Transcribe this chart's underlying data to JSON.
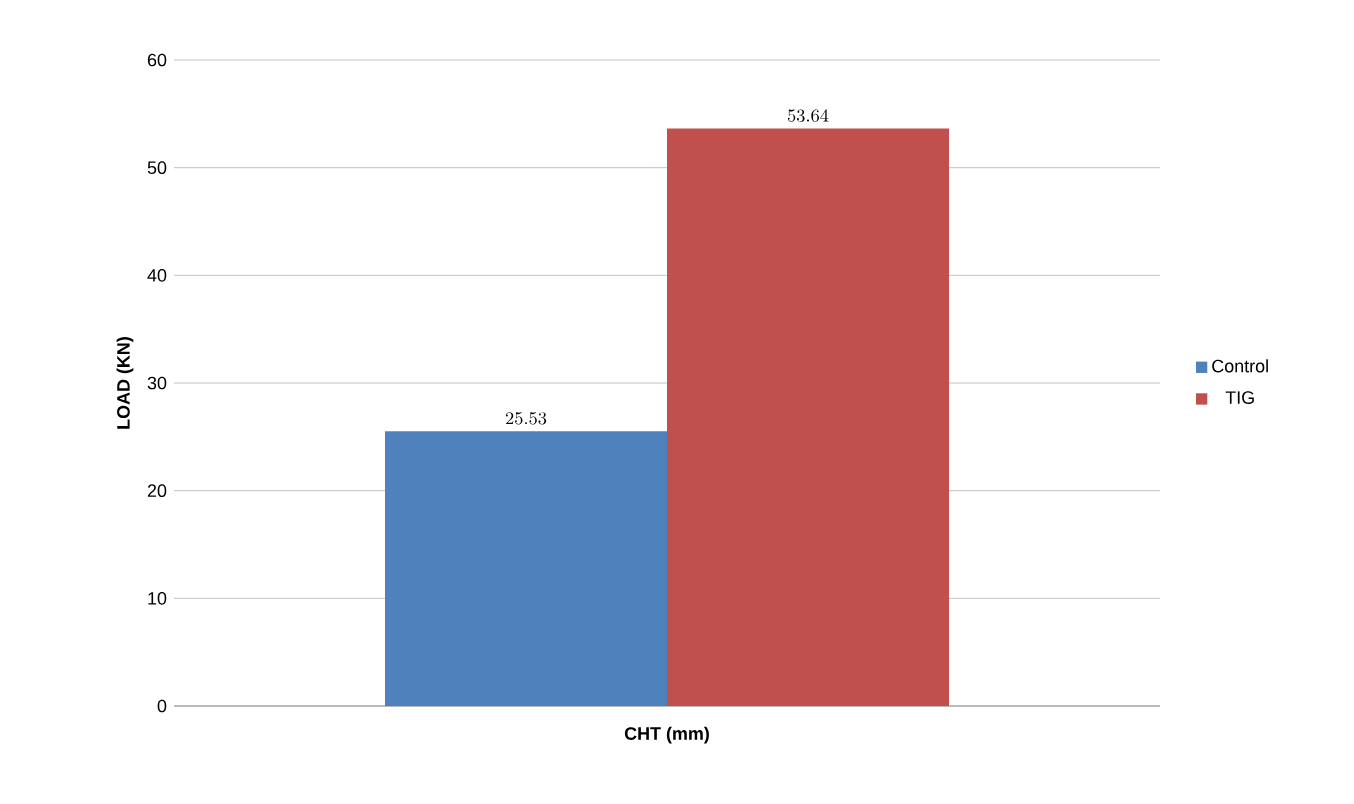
{
  "chart_data": {
    "type": "bar",
    "xlabel": "CHT (mm)",
    "ylabel": "LOAD (KN)",
    "categories": [
      null
    ],
    "series": [
      {
        "name": "Control",
        "color": "#4f81bd",
        "values": [
          25.53
        ]
      },
      {
        "name": "TIG",
        "color": "#c0504d",
        "values": [
          53.64
        ]
      }
    ],
    "ylim": [
      0,
      60
    ],
    "yticks": [
      0,
      10,
      20,
      30,
      40,
      50,
      60
    ],
    "grid": "y",
    "legend": "right",
    "data_labels": true
  }
}
